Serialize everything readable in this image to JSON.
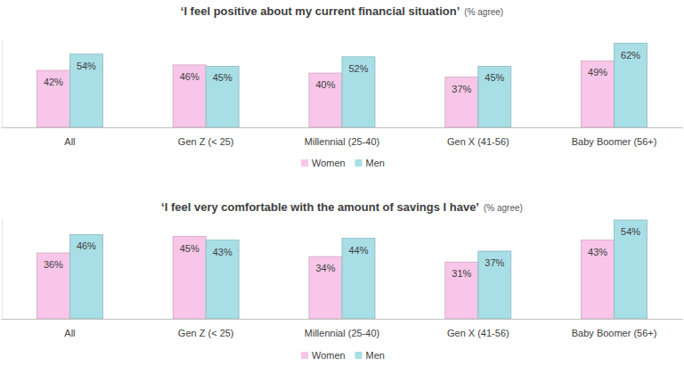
{
  "chart_data": [
    {
      "type": "bar",
      "title": "‘I feel positive about my current financial situation’",
      "subtitle": "(% agree)",
      "categories": [
        "All",
        "Gen Z (< 25)",
        "Millennial (25-40)",
        "Gen X (41-56)",
        "Baby Boomer (56+)"
      ],
      "series": [
        {
          "name": "Women",
          "color": "#f7c6e8",
          "values": [
            42,
            46,
            40,
            37,
            49
          ],
          "value_labels": [
            "42%",
            "46%",
            "40%",
            "37%",
            "49%"
          ]
        },
        {
          "name": "Men",
          "color": "#a8dee6",
          "values": [
            54,
            45,
            52,
            45,
            62
          ],
          "value_labels": [
            "54%",
            "45%",
            "52%",
            "45%",
            "62%"
          ]
        }
      ],
      "ylim": [
        0,
        65
      ],
      "yticks": [
        0
      ],
      "tick_labels": "x",
      "data_labels": true,
      "legend": "bottom",
      "grid": false
    },
    {
      "type": "bar",
      "title": "‘I feel very comfortable with the amount of savings I have’",
      "subtitle": "(% agree)",
      "categories": [
        "All",
        "Gen Z (< 25)",
        "Millennial (25-40)",
        "Gen X (41-56)",
        "Baby Boomer (56+)"
      ],
      "series": [
        {
          "name": "Women",
          "color": "#f7c6e8",
          "values": [
            36,
            45,
            34,
            31,
            43
          ],
          "value_labels": [
            "36%",
            "45%",
            "34%",
            "31%",
            "43%"
          ]
        },
        {
          "name": "Men",
          "color": "#a8dee6",
          "values": [
            46,
            43,
            44,
            37,
            54
          ],
          "value_labels": [
            "46%",
            "43%",
            "44%",
            "37%",
            "54%"
          ]
        }
      ],
      "ylim": [
        0,
        55
      ],
      "yticks": [
        0
      ],
      "tick_labels": "x",
      "data_labels": true,
      "legend": "bottom",
      "grid": false
    }
  ]
}
